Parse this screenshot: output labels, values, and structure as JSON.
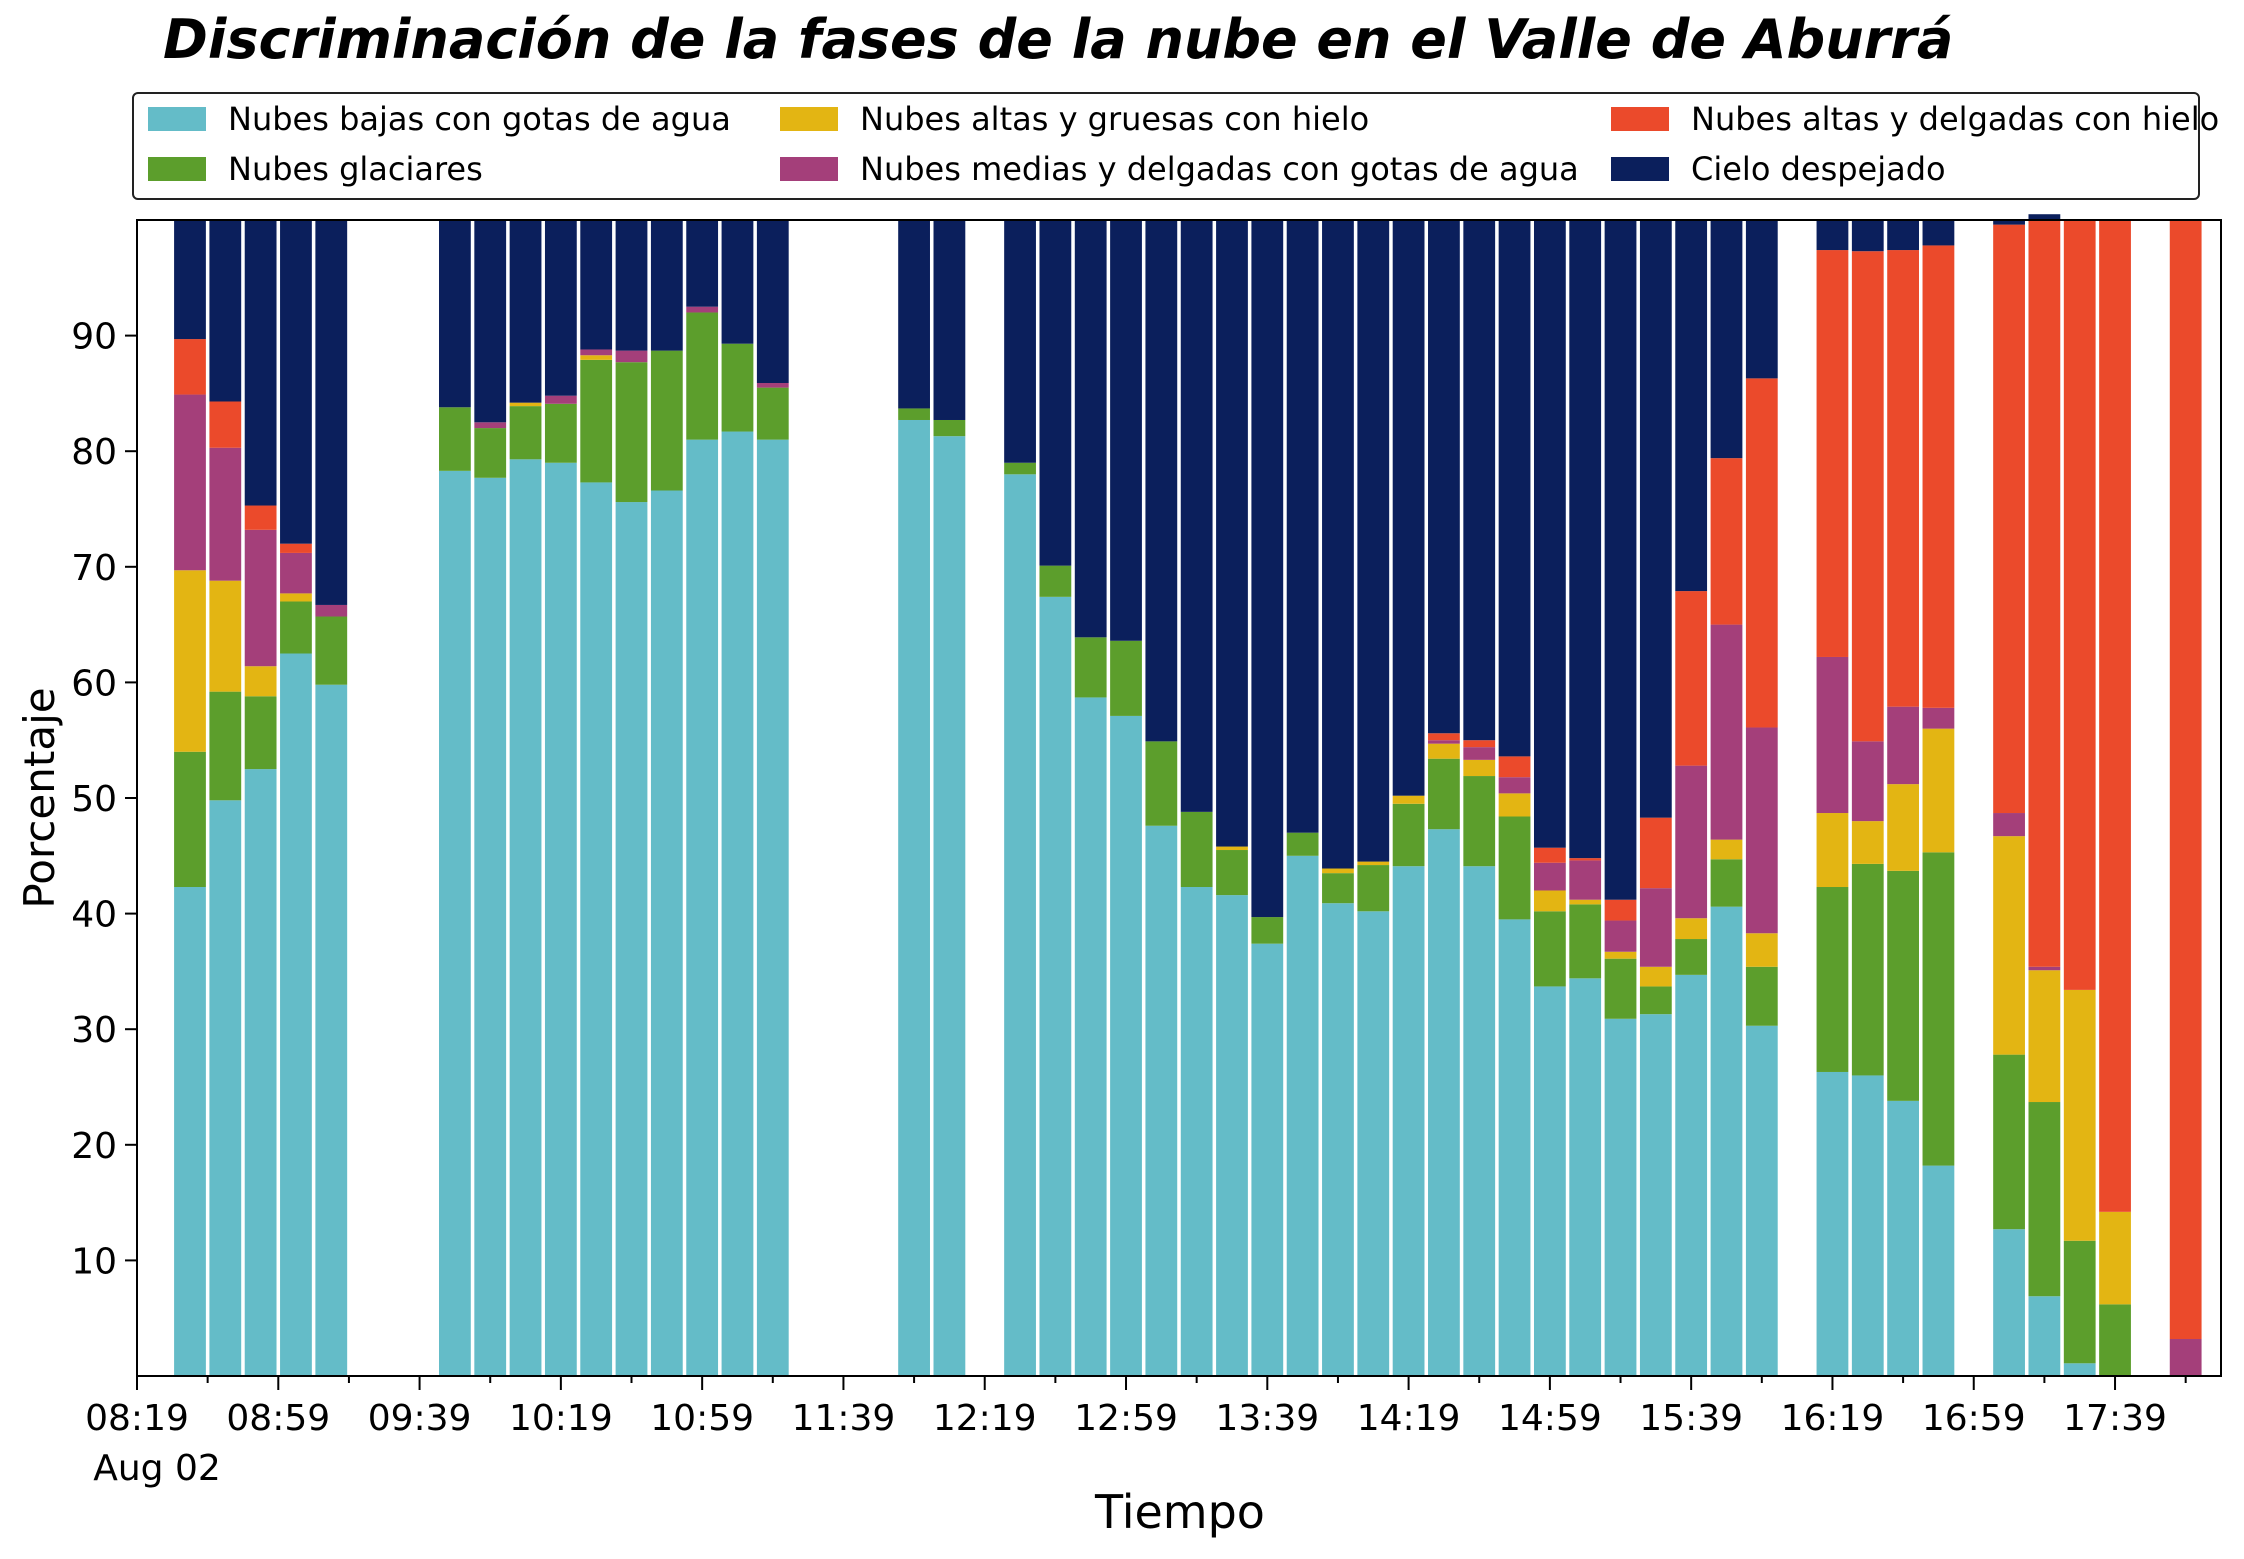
{
  "chart_data": {
    "type": "bar",
    "stacked": true,
    "title": "Discriminación de la fases de la nube en el Valle de Aburrá",
    "xlabel": "Tiempo",
    "ylabel": "Porcentaje",
    "ylim": [
      0,
      100
    ],
    "yticks": [
      10,
      20,
      30,
      40,
      50,
      60,
      70,
      80,
      90
    ],
    "xlim": [
      "08:19",
      "18:09"
    ],
    "date_label": "Aug 02",
    "xtick_labels": [
      "08:19",
      "08:59",
      "09:39",
      "10:19",
      "10:59",
      "11:39",
      "12:19",
      "12:59",
      "13:39",
      "14:19",
      "14:59",
      "15:39",
      "16:19",
      "16:59",
      "17:39"
    ],
    "legend_position": "top",
    "grid": false,
    "categories": [
      "08:34",
      "08:44",
      "08:54",
      "09:04",
      "09:14",
      "09:49",
      "09:59",
      "10:09",
      "10:19",
      "10:29",
      "10:39",
      "10:49",
      "10:59",
      "11:09",
      "11:19",
      "11:59",
      "12:09",
      "12:29",
      "12:39",
      "12:49",
      "12:59",
      "13:09",
      "13:19",
      "13:29",
      "13:39",
      "13:49",
      "13:59",
      "14:09",
      "14:19",
      "14:29",
      "14:39",
      "14:49",
      "14:59",
      "15:09",
      "15:19",
      "15:29",
      "15:39",
      "15:49",
      "15:59",
      "16:19",
      "16:29",
      "16:39",
      "16:49",
      "17:09",
      "17:19",
      "17:29",
      "17:39",
      "17:59"
    ],
    "series": [
      {
        "name": "Nubes bajas con gotas de agua",
        "color": "#64bcc8",
        "values": [
          42.3,
          49.8,
          52.5,
          62.5,
          59.8,
          78.3,
          77.7,
          79.3,
          79.0,
          77.3,
          75.6,
          76.6,
          81.0,
          81.7,
          81.0,
          82.7,
          81.3,
          78.0,
          67.4,
          58.7,
          57.1,
          47.6,
          42.3,
          41.6,
          37.4,
          45.0,
          40.9,
          40.2,
          44.1,
          47.3,
          44.1,
          39.5,
          33.7,
          34.4,
          30.9,
          31.3,
          34.7,
          40.6,
          30.3,
          26.3,
          26.0,
          23.8,
          18.2,
          12.7,
          6.9,
          1.1,
          0,
          0
        ]
      },
      {
        "name": "Nubes glaciares",
        "color": "#5c9e2c",
        "values": [
          11.7,
          9.4,
          6.3,
          4.5,
          5.9,
          5.5,
          4.3,
          4.6,
          5.1,
          10.6,
          12.1,
          12.1,
          11.0,
          7.6,
          4.5,
          1.0,
          1.4,
          1.0,
          2.7,
          5.2,
          6.5,
          7.3,
          6.5,
          3.9,
          2.3,
          2.0,
          2.6,
          4.0,
          5.4,
          6.1,
          7.8,
          8.9,
          6.5,
          6.4,
          5.2,
          2.4,
          3.1,
          4.1,
          5.1,
          16.0,
          18.3,
          19.9,
          27.1,
          15.1,
          16.8,
          10.6,
          6.2,
          0
        ]
      },
      {
        "name": "Nubes altas y gruesas con hielo",
        "color": "#e3b513",
        "values": [
          15.7,
          9.6,
          2.6,
          0.7,
          0,
          0,
          0,
          0.3,
          0,
          0.4,
          0,
          0,
          0,
          0,
          0,
          0,
          0,
          0,
          0,
          0,
          0,
          0,
          0,
          0.3,
          0,
          0,
          0.4,
          0.3,
          0.7,
          1.3,
          1.4,
          2.0,
          1.8,
          0.4,
          0.6,
          1.7,
          1.8,
          1.7,
          2.9,
          6.4,
          3.7,
          7.5,
          10.7,
          18.9,
          11.4,
          21.7,
          8.0,
          0
        ]
      },
      {
        "name": "Nubes medias y delgadas con gotas de agua",
        "color": "#a43f7a",
        "values": [
          15.2,
          11.5,
          11.8,
          3.5,
          1.0,
          0,
          0.5,
          0,
          0.7,
          0.5,
          1.0,
          0,
          0.5,
          0,
          0.4,
          0,
          0,
          0,
          0,
          0,
          0,
          0,
          0,
          0,
          0,
          0,
          0,
          0,
          0,
          0.3,
          1.1,
          1.4,
          2.4,
          3.4,
          2.7,
          6.8,
          13.2,
          18.6,
          17.8,
          13.5,
          6.9,
          6.7,
          1.8,
          2.0,
          0.3,
          0,
          0,
          3.2
        ]
      },
      {
        "name": "Nubes altas y delgadas con hielo",
        "color": "#eb4a2b",
        "values": [
          4.8,
          4.0,
          2.1,
          0.8,
          0,
          0,
          0,
          0,
          0,
          0,
          0,
          0,
          0,
          0,
          0,
          0,
          0,
          0,
          0,
          0,
          0,
          0,
          0,
          0,
          0,
          0,
          0,
          0,
          0,
          0.6,
          0.6,
          1.8,
          1.3,
          0.2,
          1.8,
          6.1,
          15.1,
          14.4,
          30.2,
          35.2,
          42.4,
          39.5,
          40.0,
          50.9,
          64.6,
          66.6,
          85.8,
          96.8
        ]
      },
      {
        "name": "Cielo despejado",
        "color": "#0b1f5c",
        "values": [
          10.3,
          15.7,
          24.7,
          28.0,
          33.3,
          16.2,
          17.5,
          15.8,
          15.2,
          11.2,
          11.3,
          11.3,
          7.5,
          10.7,
          14.1,
          16.3,
          17.3,
          21.0,
          29.9,
          36.1,
          36.4,
          45.1,
          51.2,
          54.2,
          60.3,
          53.0,
          56.1,
          55.5,
          49.8,
          44.4,
          45.0,
          46.4,
          54.3,
          55.2,
          58.8,
          51.7,
          32.1,
          20.6,
          13.7,
          2.6,
          2.7,
          2.6,
          2.2,
          0.4,
          0.5,
          0,
          0,
          0
        ]
      }
    ]
  }
}
